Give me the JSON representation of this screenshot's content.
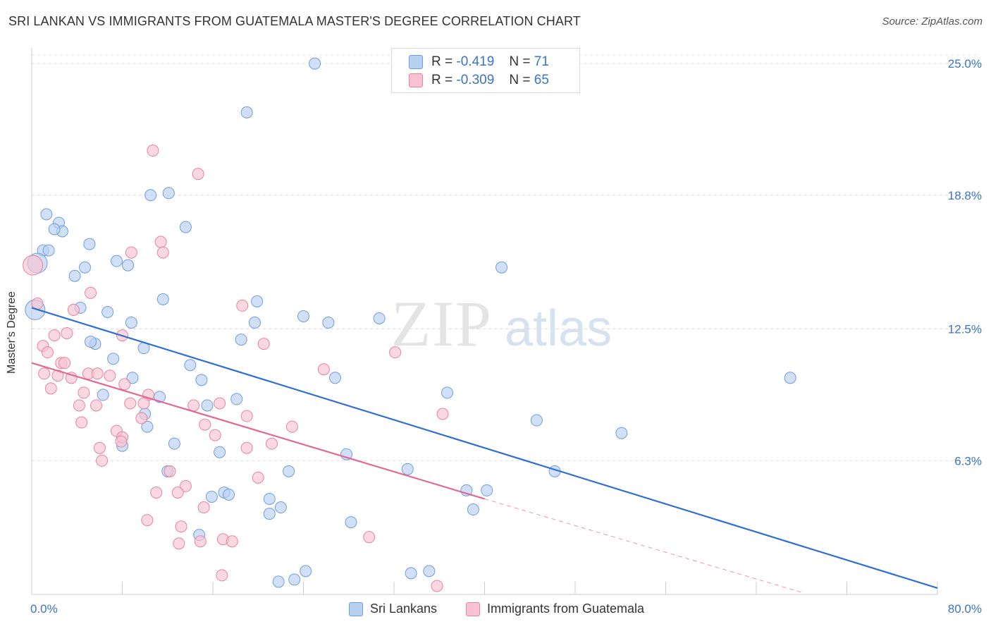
{
  "chart_data": {
    "type": "scatter",
    "title": "SRI LANKAN VS IMMIGRANTS FROM GUATEMALA MASTER'S DEGREE CORRELATION CHART",
    "source": "Source: ZipAtlas.com",
    "watermark": {
      "zip": "ZIP",
      "atlas": "atlas"
    },
    "ylabel": "Master's Degree",
    "xlim": [
      0,
      80
    ],
    "ylim": [
      0,
      25.6
    ],
    "x_tick_labels": [
      "0.0%",
      "80.0%"
    ],
    "y_ticks": [
      {
        "value": 25.0,
        "label": "25.0%"
      },
      {
        "value": 18.8,
        "label": "18.8%"
      },
      {
        "value": 12.5,
        "label": "12.5%"
      },
      {
        "value": 6.3,
        "label": "6.3%"
      }
    ],
    "colors": {
      "blue_fill": "#b8d0f2",
      "blue_stroke": "#6f9ddb",
      "blue_line": "#2e6fd0",
      "pink_fill": "#f7c3d3",
      "pink_stroke": "#e8839f",
      "pink_line": "#e06a93",
      "grid": "#dcdcdc",
      "axis": "#cccccc",
      "tick_text": "#3a74c8"
    },
    "stats": [
      {
        "r_label": "R =",
        "r_value": "-0.419",
        "n_label": "N =",
        "n_value": "71"
      },
      {
        "r_label": "R =",
        "r_value": "-0.309",
        "n_label": "N =",
        "n_value": "65"
      }
    ],
    "series": [
      {
        "name": "Sri Lankans",
        "color": "#b8d0f2",
        "trend": {
          "x0": 0,
          "y0": 13.5,
          "x1": 80,
          "y1": 0.3
        },
        "points": [
          [
            25.0,
            25.0
          ],
          [
            19.0,
            22.7
          ],
          [
            10.5,
            18.8
          ],
          [
            12.1,
            18.9
          ],
          [
            1.3,
            17.9
          ],
          [
            13.6,
            17.3
          ],
          [
            2.4,
            17.5
          ],
          [
            2.7,
            17.1
          ],
          [
            2.0,
            17.2
          ],
          [
            5.1,
            16.5
          ],
          [
            1.0,
            16.2
          ],
          [
            0.5,
            15.6
          ],
          [
            1.5,
            16.2
          ],
          [
            7.5,
            15.7
          ],
          [
            8.5,
            15.5
          ],
          [
            4.7,
            15.4
          ],
          [
            3.8,
            15.0
          ],
          [
            41.5,
            15.4
          ],
          [
            11.6,
            13.9
          ],
          [
            4.3,
            13.5
          ],
          [
            19.9,
            13.8
          ],
          [
            6.7,
            13.3
          ],
          [
            0.3,
            13.4
          ],
          [
            24.0,
            13.1
          ],
          [
            30.7,
            13.0
          ],
          [
            19.7,
            12.8
          ],
          [
            26.2,
            12.8
          ],
          [
            8.8,
            12.8
          ],
          [
            5.6,
            11.8
          ],
          [
            5.2,
            11.9
          ],
          [
            18.5,
            12.0
          ],
          [
            9.9,
            11.6
          ],
          [
            7.2,
            11.1
          ],
          [
            14.0,
            10.8
          ],
          [
            26.8,
            10.2
          ],
          [
            8.9,
            10.2
          ],
          [
            15.0,
            10.1
          ],
          [
            67.0,
            10.2
          ],
          [
            6.3,
            9.4
          ],
          [
            11.3,
            9.3
          ],
          [
            36.7,
            9.5
          ],
          [
            18.1,
            9.2
          ],
          [
            15.5,
            8.9
          ],
          [
            10.0,
            8.5
          ],
          [
            44.6,
            8.2
          ],
          [
            10.2,
            7.9
          ],
          [
            52.1,
            7.6
          ],
          [
            12.6,
            7.1
          ],
          [
            8.0,
            7.0
          ],
          [
            16.6,
            6.7
          ],
          [
            27.8,
            6.6
          ],
          [
            33.2,
            5.9
          ],
          [
            22.7,
            5.8
          ],
          [
            12.0,
            5.8
          ],
          [
            46.2,
            5.8
          ],
          [
            17.0,
            4.8
          ],
          [
            15.9,
            4.6
          ],
          [
            17.4,
            4.7
          ],
          [
            38.4,
            4.9
          ],
          [
            21.0,
            4.5
          ],
          [
            40.2,
            4.9
          ],
          [
            22.0,
            4.1
          ],
          [
            21.0,
            3.8
          ],
          [
            39.0,
            4.0
          ],
          [
            28.2,
            3.4
          ],
          [
            14.8,
            2.8
          ],
          [
            24.2,
            1.1
          ],
          [
            33.5,
            1.0
          ],
          [
            23.2,
            0.7
          ],
          [
            21.8,
            0.6
          ],
          [
            35.1,
            1.1
          ]
        ]
      },
      {
        "name": "Immigrants from Guatemala",
        "color": "#f7c3d3",
        "trend": {
          "x0": 0,
          "y0": 10.9,
          "x1": 40,
          "y1": 4.5,
          "dash_x1": 68,
          "dash_y1": 0.1
        },
        "points": [
          [
            0.1,
            15.5
          ],
          [
            10.7,
            20.9
          ],
          [
            14.7,
            19.8
          ],
          [
            11.4,
            16.6
          ],
          [
            11.6,
            16.1
          ],
          [
            8.8,
            16.1
          ],
          [
            5.2,
            14.2
          ],
          [
            0.5,
            13.7
          ],
          [
            18.6,
            13.6
          ],
          [
            3.7,
            13.4
          ],
          [
            3.1,
            12.3
          ],
          [
            2.0,
            12.2
          ],
          [
            8.0,
            12.2
          ],
          [
            32.1,
            11.4
          ],
          [
            1.0,
            11.7
          ],
          [
            20.5,
            11.8
          ],
          [
            1.4,
            11.4
          ],
          [
            2.6,
            10.9
          ],
          [
            2.9,
            10.9
          ],
          [
            25.8,
            10.6
          ],
          [
            1.1,
            10.4
          ],
          [
            2.3,
            10.3
          ],
          [
            5.0,
            10.4
          ],
          [
            5.8,
            10.4
          ],
          [
            6.9,
            10.3
          ],
          [
            3.5,
            10.2
          ],
          [
            8.2,
            9.9
          ],
          [
            1.7,
            9.7
          ],
          [
            4.6,
            9.5
          ],
          [
            10.3,
            9.4
          ],
          [
            8.7,
            9.0
          ],
          [
            16.6,
            9.0
          ],
          [
            9.9,
            9.0
          ],
          [
            4.2,
            8.9
          ],
          [
            5.7,
            8.9
          ],
          [
            14.3,
            8.9
          ],
          [
            19.0,
            8.4
          ],
          [
            36.3,
            8.5
          ],
          [
            9.7,
            8.3
          ],
          [
            4.4,
            8.1
          ],
          [
            15.3,
            8.0
          ],
          [
            23.0,
            7.9
          ],
          [
            7.5,
            7.7
          ],
          [
            16.2,
            7.5
          ],
          [
            8.0,
            7.4
          ],
          [
            7.9,
            7.2
          ],
          [
            21.2,
            7.1
          ],
          [
            19.0,
            6.9
          ],
          [
            6.0,
            6.9
          ],
          [
            6.2,
            6.3
          ],
          [
            12.2,
            5.8
          ],
          [
            20.0,
            5.5
          ],
          [
            13.6,
            5.1
          ],
          [
            11.0,
            4.8
          ],
          [
            12.9,
            4.8
          ],
          [
            15.2,
            4.1
          ],
          [
            10.2,
            3.5
          ],
          [
            13.2,
            3.2
          ],
          [
            29.8,
            2.7
          ],
          [
            16.9,
            2.6
          ],
          [
            17.7,
            2.5
          ],
          [
            14.9,
            2.5
          ],
          [
            13.0,
            2.4
          ],
          [
            16.8,
            0.9
          ],
          [
            35.8,
            0.4
          ]
        ]
      }
    ],
    "legend": [
      "Sri Lankans",
      "Immigrants from Guatemala"
    ]
  }
}
